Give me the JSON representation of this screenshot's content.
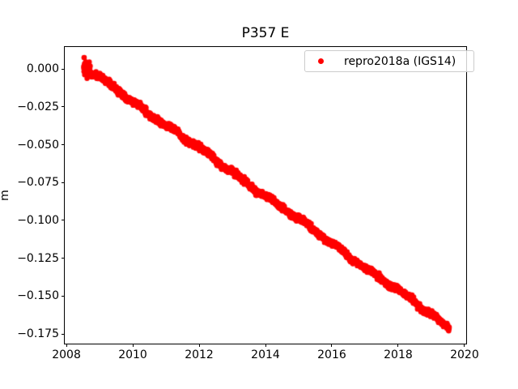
{
  "chart_data": {
    "type": "scatter",
    "title": "P357 E",
    "xlabel": "",
    "ylabel": "m",
    "grid": false,
    "background_color": "#ffffff",
    "axes": {
      "xlim": [
        2007.95,
        2020.05
      ],
      "ylim": [
        -0.1814,
        0.0145
      ],
      "xticks": [
        2008,
        2010,
        2012,
        2014,
        2016,
        2018,
        2020
      ],
      "xtick_labels": [
        "2008",
        "2010",
        "2012",
        "2014",
        "2016",
        "2018",
        "2020"
      ],
      "yticks": [
        0.0,
        -0.025,
        -0.05,
        -0.075,
        -0.1,
        -0.125,
        -0.15,
        -0.175
      ],
      "ytick_labels": [
        "0.000",
        "−0.025",
        "−0.050",
        "−0.075",
        "−0.100",
        "−0.125",
        "−0.150",
        "−0.175"
      ]
    },
    "legend": {
      "position": "upper right",
      "border_color": "#cccccc",
      "entries": [
        {
          "label": "repro2018a (IGS14)",
          "color": "#ff0000",
          "marker": "dot"
        }
      ]
    },
    "series": [
      {
        "name": "repro2018a (IGS14)",
        "color": "#ff0000",
        "marker": "dot",
        "marker_radius_px": 3.2,
        "x_start": 2008.52,
        "x_end": 2019.54,
        "n_points": 2600,
        "trend_points": [
          [
            2008.52,
            0.0015
          ],
          [
            2014.0,
            -0.0836
          ],
          [
            2019.54,
            -0.1708
          ]
        ],
        "noise_std_m": 0.001,
        "start_noise_std_m": 0.0026,
        "start_noise_until": 2008.72,
        "wiggle": [
          {
            "amp": 0.0009,
            "period_yr": 1.0,
            "phase": 0.3
          },
          {
            "amp": 0.0006,
            "period_yr": 3.1,
            "phase": 1.2
          },
          {
            "amp": 0.0004,
            "period_yr": 0.55,
            "phase": 2.1
          }
        ],
        "outliers": [
          [
            2008.53,
            0.0075
          ],
          [
            2008.58,
            0.0047
          ],
          [
            2009.44,
            -0.0095
          ],
          [
            2012.27,
            -0.0533
          ]
        ]
      }
    ]
  }
}
